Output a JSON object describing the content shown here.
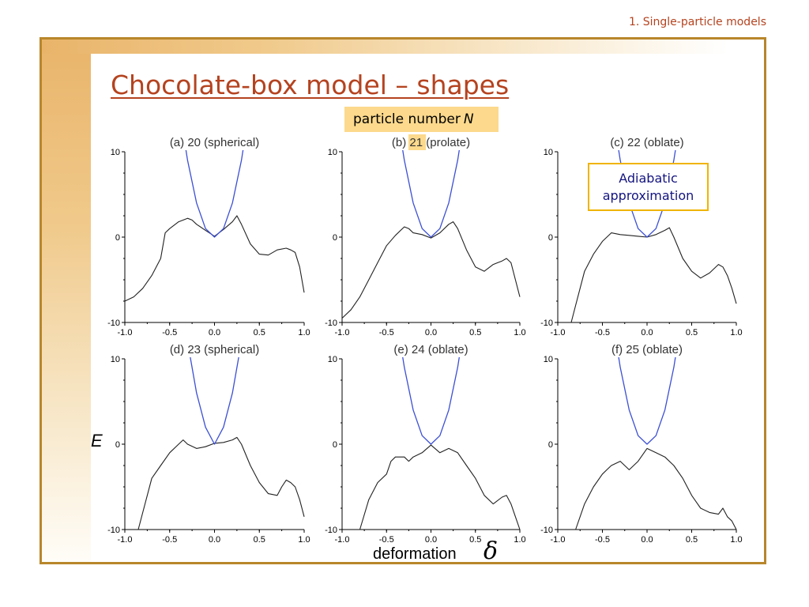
{
  "header": {
    "section_label": "1. Single-particle models"
  },
  "slide": {
    "title": "Chocolate-box model – shapes",
    "callout_particle": {
      "text": "particle number",
      "variable": "N"
    },
    "callout_adiabatic": {
      "line1": "Adiabatic",
      "line2": "approximation"
    },
    "y_axis_label": "E",
    "x_axis_label": "deformation",
    "x_axis_symbol": "δ"
  },
  "colors": {
    "accent": "#b5431f",
    "frame": "#b8862b",
    "highlight": "#fcd98c",
    "energy_curve": "#222222",
    "adiabatic_curve": "#3b4fd4"
  },
  "chart_data": [
    {
      "type": "line",
      "title": "(a) 20 (spherical)",
      "xlim": [
        -1.0,
        1.0
      ],
      "ylim": [
        -10,
        10
      ],
      "xticks": [
        "-1.0",
        "-0.5",
        "0.0",
        "0.5",
        "1.0"
      ],
      "yticks": [
        "10",
        "0",
        "-10"
      ],
      "series": [
        {
          "x": [
            -1.0,
            -0.9,
            -0.8,
            -0.7,
            -0.6,
            -0.55,
            -0.5,
            -0.4,
            -0.3,
            -0.25,
            -0.2,
            -0.1,
            0.0,
            0.1,
            0.2,
            0.25,
            0.3,
            0.4,
            0.5,
            0.6,
            0.7,
            0.8,
            0.85,
            0.9,
            0.95,
            1.0
          ],
          "y": [
            -7.5,
            -7.0,
            -6.0,
            -4.5,
            -2.5,
            0.5,
            1.0,
            1.8,
            2.2,
            2.0,
            1.5,
            0.8,
            0.1,
            0.9,
            1.8,
            2.5,
            1.5,
            -0.8,
            -2.0,
            -2.1,
            -1.5,
            -1.3,
            -1.5,
            -1.8,
            -3.5,
            -6.5
          ]
        },
        {
          "x": [
            -0.35,
            -0.3,
            -0.2,
            -0.1,
            0.0,
            0.1,
            0.2,
            0.3,
            0.35
          ],
          "y": [
            12.3,
            9.0,
            4.0,
            1.0,
            0.0,
            1.0,
            4.0,
            9.0,
            12.3
          ]
        }
      ]
    },
    {
      "type": "line",
      "title": "(b) 21 (prolate)",
      "xlim": [
        -1.0,
        1.0
      ],
      "ylim": [
        -10,
        10
      ],
      "xticks": [
        "-1.0",
        "-0.5",
        "0.0",
        "0.5",
        "1.0"
      ],
      "yticks": [
        "10",
        "0",
        "-10"
      ],
      "series": [
        {
          "x": [
            -1.0,
            -0.9,
            -0.8,
            -0.7,
            -0.6,
            -0.5,
            -0.4,
            -0.3,
            -0.25,
            -0.2,
            -0.1,
            0.0,
            0.1,
            0.2,
            0.25,
            0.3,
            0.4,
            0.5,
            0.6,
            0.7,
            0.75,
            0.8,
            0.85,
            0.9,
            0.95,
            1.0
          ],
          "y": [
            -9.5,
            -8.5,
            -7.0,
            -5.0,
            -3.0,
            -1.0,
            0.2,
            1.2,
            1.0,
            0.5,
            0.3,
            -0.1,
            0.5,
            1.5,
            1.8,
            1.0,
            -1.5,
            -3.5,
            -4.0,
            -3.2,
            -3.0,
            -2.8,
            -2.5,
            -3.0,
            -5.0,
            -7.0
          ]
        },
        {
          "x": [
            -0.35,
            -0.3,
            -0.2,
            -0.1,
            0.0,
            0.1,
            0.2,
            0.3,
            0.35
          ],
          "y": [
            12.3,
            9.0,
            4.0,
            1.0,
            0.0,
            1.0,
            4.0,
            9.0,
            12.3
          ]
        }
      ]
    },
    {
      "type": "line",
      "title": "(c) 22 (oblate)",
      "xlim": [
        -1.0,
        1.0
      ],
      "ylim": [
        -10,
        10
      ],
      "xticks": [
        "-1.0",
        "-0.5",
        "0.0",
        "0.5",
        "1.0"
      ],
      "yticks": [
        "10",
        "0",
        "-10"
      ],
      "series": [
        {
          "x": [
            -0.85,
            -0.8,
            -0.7,
            -0.6,
            -0.5,
            -0.4,
            -0.3,
            -0.2,
            -0.1,
            0.0,
            0.1,
            0.2,
            0.25,
            0.3,
            0.4,
            0.5,
            0.6,
            0.7,
            0.8,
            0.85,
            0.9,
            0.95,
            1.0
          ],
          "y": [
            -10.0,
            -8.0,
            -4.0,
            -2.0,
            -0.5,
            0.5,
            0.3,
            0.2,
            0.1,
            0.0,
            0.3,
            0.8,
            1.1,
            0.0,
            -2.5,
            -4.0,
            -4.8,
            -4.2,
            -3.2,
            -3.5,
            -4.5,
            -6.0,
            -7.8
          ]
        },
        {
          "x": [
            -0.35,
            -0.3,
            -0.2,
            -0.1,
            0.0,
            0.1,
            0.2,
            0.3,
            0.35
          ],
          "y": [
            12.3,
            9.0,
            4.0,
            1.0,
            0.0,
            1.0,
            4.0,
            9.0,
            12.3
          ]
        }
      ]
    },
    {
      "type": "line",
      "title": "(d) 23 (spherical)",
      "xlim": [
        -1.0,
        1.0
      ],
      "ylim": [
        -10,
        10
      ],
      "xticks": [
        "-1.0",
        "-0.5",
        "0.0",
        "0.5",
        "1.0"
      ],
      "yticks": [
        "10",
        "0",
        "-10"
      ],
      "series": [
        {
          "x": [
            -0.85,
            -0.8,
            -0.7,
            -0.6,
            -0.5,
            -0.4,
            -0.35,
            -0.3,
            -0.2,
            -0.1,
            0.0,
            0.1,
            0.2,
            0.25,
            0.3,
            0.4,
            0.5,
            0.6,
            0.7,
            0.75,
            0.8,
            0.85,
            0.9,
            0.95,
            1.0
          ],
          "y": [
            -10.0,
            -8.0,
            -4.0,
            -2.5,
            -1.0,
            0.0,
            0.5,
            0.0,
            -0.5,
            -0.3,
            0.1,
            0.2,
            0.5,
            0.8,
            0.0,
            -2.5,
            -4.5,
            -5.8,
            -6.0,
            -5.0,
            -4.2,
            -4.5,
            -5.0,
            -6.5,
            -8.5
          ]
        },
        {
          "x": [
            -0.3,
            -0.2,
            -0.1,
            0.0,
            0.1,
            0.2,
            0.3
          ],
          "y": [
            12.0,
            6.0,
            2.0,
            0.0,
            2.0,
            6.0,
            12.0
          ]
        }
      ]
    },
    {
      "type": "line",
      "title": "(e) 24 (oblate)",
      "xlim": [
        -1.0,
        1.0
      ],
      "ylim": [
        -10,
        10
      ],
      "xticks": [
        "-1.0",
        "-0.5",
        "0.0",
        "0.5",
        "1.0"
      ],
      "yticks": [
        "10",
        "0",
        "-10"
      ],
      "series": [
        {
          "x": [
            -0.8,
            -0.7,
            -0.6,
            -0.5,
            -0.45,
            -0.4,
            -0.3,
            -0.25,
            -0.2,
            -0.1,
            0.0,
            0.1,
            0.2,
            0.3,
            0.4,
            0.5,
            0.6,
            0.7,
            0.8,
            0.85,
            0.9,
            0.95,
            1.0
          ],
          "y": [
            -10.0,
            -6.5,
            -4.5,
            -3.5,
            -2.0,
            -1.5,
            -1.5,
            -2.0,
            -1.5,
            -1.0,
            -0.1,
            -1.0,
            -0.5,
            -1.0,
            -2.5,
            -4.0,
            -6.0,
            -7.0,
            -6.2,
            -6.0,
            -7.0,
            -8.5,
            -10.0
          ]
        },
        {
          "x": [
            -0.35,
            -0.3,
            -0.2,
            -0.1,
            0.0,
            0.1,
            0.2,
            0.3,
            0.35
          ],
          "y": [
            12.3,
            9.0,
            4.0,
            1.0,
            0.0,
            1.0,
            4.0,
            9.0,
            12.3
          ]
        }
      ]
    },
    {
      "type": "line",
      "title": "(f) 25 (oblate)",
      "xlim": [
        -1.0,
        1.0
      ],
      "ylim": [
        -10,
        10
      ],
      "xticks": [
        "-1.0",
        "-0.5",
        "0.0",
        "0.5",
        "1.0"
      ],
      "yticks": [
        "10",
        "0",
        "-10"
      ],
      "series": [
        {
          "x": [
            -0.8,
            -0.7,
            -0.6,
            -0.5,
            -0.45,
            -0.4,
            -0.3,
            -0.2,
            -0.1,
            0.0,
            0.1,
            0.2,
            0.3,
            0.4,
            0.5,
            0.6,
            0.7,
            0.8,
            0.85,
            0.9,
            0.95,
            1.0
          ],
          "y": [
            -10.0,
            -7.0,
            -5.0,
            -3.5,
            -3.0,
            -2.5,
            -2.0,
            -3.0,
            -2.0,
            -0.5,
            -1.0,
            -1.5,
            -2.5,
            -4.0,
            -6.0,
            -7.5,
            -8.0,
            -8.2,
            -7.5,
            -8.5,
            -9.0,
            -10.0
          ]
        },
        {
          "x": [
            -0.35,
            -0.3,
            -0.2,
            -0.1,
            0.0,
            0.1,
            0.2,
            0.3,
            0.35
          ],
          "y": [
            12.3,
            9.0,
            4.0,
            1.0,
            0.0,
            1.0,
            4.0,
            9.0,
            12.3
          ]
        }
      ]
    }
  ]
}
